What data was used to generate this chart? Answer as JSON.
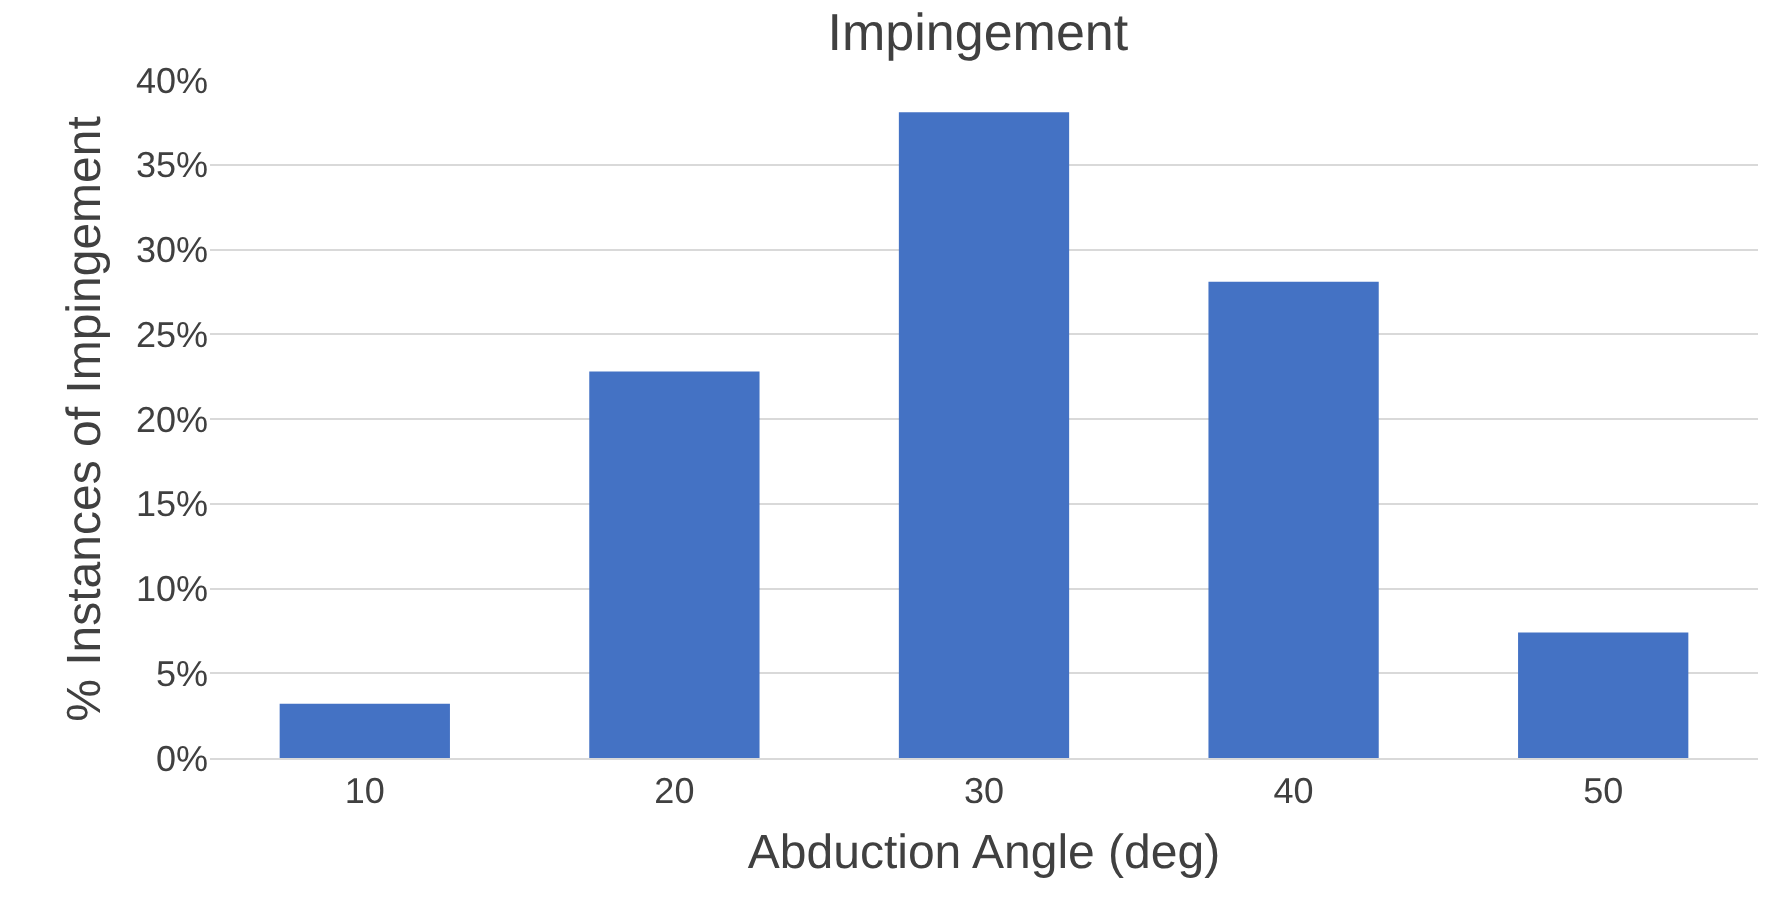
{
  "chart_data": {
    "type": "bar",
    "title": "Impingement",
    "xlabel": "Abduction Angle (deg)",
    "ylabel": "% Instances of Impingement",
    "categories": [
      "10",
      "20",
      "30",
      "40",
      "50"
    ],
    "values": [
      3.2,
      22.8,
      38.1,
      28.1,
      7.4
    ],
    "color": "#4472c4",
    "ylim": [
      0,
      40
    ],
    "yticks": [
      {
        "value": 0,
        "label": "0%"
      },
      {
        "value": 5,
        "label": "5%"
      },
      {
        "value": 10,
        "label": "10%"
      },
      {
        "value": 15,
        "label": "15%"
      },
      {
        "value": 20,
        "label": "20%"
      },
      {
        "value": 25,
        "label": "25%"
      },
      {
        "value": 30,
        "label": "30%"
      },
      {
        "value": 35,
        "label": "35%"
      },
      {
        "value": 40,
        "label": "40%"
      }
    ],
    "grid": "y"
  }
}
